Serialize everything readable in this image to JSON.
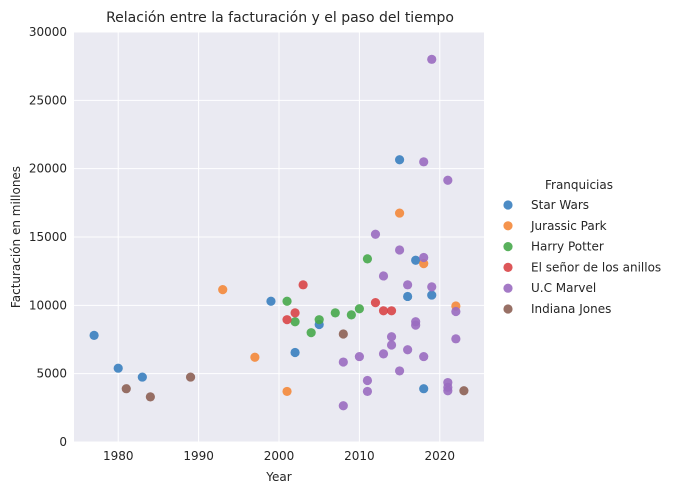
{
  "chart_data": {
    "type": "scatter",
    "title": "Relación entre la facturación y el paso del tiempo",
    "xlabel": "Year",
    "ylabel": "Facturación en millones",
    "xlim": [
      1974.5,
      2025.5
    ],
    "ylim": [
      0,
      30000
    ],
    "xticks": [
      "1980",
      "1990",
      "2000",
      "2010",
      "2020"
    ],
    "yticks": [
      "0",
      "5000",
      "10000",
      "15000",
      "20000",
      "25000",
      "30000"
    ],
    "grid": true,
    "legend_title": "Franquicias",
    "legend_position": "right",
    "series": [
      {
        "name": "Star Wars",
        "color": "#3a7fbf",
        "points": [
          [
            1977,
            7800
          ],
          [
            1980,
            5400
          ],
          [
            1983,
            4750
          ],
          [
            1999,
            10300
          ],
          [
            2002,
            6550
          ],
          [
            2005,
            8600
          ],
          [
            2015,
            20650
          ],
          [
            2016,
            10650
          ],
          [
            2017,
            13300
          ],
          [
            2018,
            3900
          ],
          [
            2019,
            10750
          ]
        ]
      },
      {
        "name": "Jurassic Park",
        "color": "#f4883a",
        "points": [
          [
            1993,
            11150
          ],
          [
            1997,
            6200
          ],
          [
            2001,
            3700
          ],
          [
            2015,
            16750
          ],
          [
            2018,
            13050
          ],
          [
            2022,
            9950
          ]
        ]
      },
      {
        "name": "Harry Potter",
        "color": "#47a94b",
        "points": [
          [
            2001,
            10300
          ],
          [
            2002,
            8800
          ],
          [
            2004,
            8000
          ],
          [
            2005,
            8950
          ],
          [
            2007,
            9450
          ],
          [
            2009,
            9300
          ],
          [
            2010,
            9750
          ],
          [
            2011,
            13400
          ]
        ]
      },
      {
        "name": "El señor de los anillos",
        "color": "#d94547",
        "points": [
          [
            2001,
            8950
          ],
          [
            2002,
            9450
          ],
          [
            2003,
            11500
          ],
          [
            2012,
            10200
          ],
          [
            2013,
            9600
          ],
          [
            2014,
            9600
          ]
        ]
      },
      {
        "name": "U.C Marvel",
        "color": "#9a6cc0",
        "points": [
          [
            2008,
            5850
          ],
          [
            2008,
            2650
          ],
          [
            2010,
            6250
          ],
          [
            2011,
            4500
          ],
          [
            2011,
            3700
          ],
          [
            2012,
            15200
          ],
          [
            2013,
            12150
          ],
          [
            2013,
            6450
          ],
          [
            2014,
            7700
          ],
          [
            2014,
            7100
          ],
          [
            2015,
            14050
          ],
          [
            2015,
            5200
          ],
          [
            2016,
            11500
          ],
          [
            2016,
            6750
          ],
          [
            2017,
            8800
          ],
          [
            2017,
            8550
          ],
          [
            2018,
            20500
          ],
          [
            2018,
            13500
          ],
          [
            2018,
            6250
          ],
          [
            2019,
            28000
          ],
          [
            2019,
            11350
          ],
          [
            2021,
            19150
          ],
          [
            2021,
            4350
          ],
          [
            2021,
            4000
          ],
          [
            2021,
            3750
          ],
          [
            2022,
            9550
          ],
          [
            2022,
            7550
          ]
        ]
      },
      {
        "name": "Indiana Jones",
        "color": "#8d6054",
        "points": [
          [
            1981,
            3900
          ],
          [
            1984,
            3300
          ],
          [
            1989,
            4750
          ],
          [
            2008,
            7900
          ],
          [
            2023,
            3750
          ]
        ]
      }
    ]
  }
}
